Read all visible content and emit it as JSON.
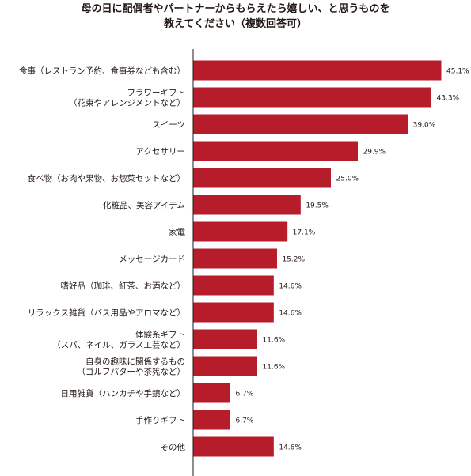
{
  "chart_data": {
    "type": "bar",
    "orientation": "horizontal",
    "title_lines": [
      "母の日に配偶者やパートナーからもらえたら嬉しい、と思うものを",
      "教えてください（複数回答可）"
    ],
    "categories": [
      [
        "食事（レストラン予約、食事券なども含む）"
      ],
      [
        "フラワーギフト",
        "（花束やアレンジメントなど）"
      ],
      [
        "スイーツ"
      ],
      [
        "アクセサリー"
      ],
      [
        "食べ物（お肉や果物、お惣菜セットなど）"
      ],
      [
        "化粧品、美容アイテム"
      ],
      [
        "家電"
      ],
      [
        "メッセージカード"
      ],
      [
        "嗜好品（珈琲、紅茶、お酒など）"
      ],
      [
        "リラックス雑貨（バス用品やアロマなど）"
      ],
      [
        "体験系ギフト",
        "（スパ、ネイル、ガラス工芸など）"
      ],
      [
        "自身の趣味に関係するもの",
        "（ゴルフパターや茶筅など）"
      ],
      [
        "日用雑貨（ハンカチや手鏡など）"
      ],
      [
        "手作りギフト"
      ],
      [
        "その他"
      ]
    ],
    "values": [
      45.1,
      43.3,
      39.0,
      29.9,
      25.0,
      19.5,
      17.1,
      15.2,
      14.6,
      14.6,
      11.6,
      11.6,
      6.7,
      6.7,
      14.6
    ],
    "value_labels": [
      "45.1%",
      "43.3%",
      "39.0%",
      "29.9%",
      "25.0%",
      "19.5%",
      "17.1%",
      "15.2%",
      "14.6%",
      "14.6%",
      "11.6%",
      "11.6%",
      "6.7%",
      "6.7%",
      "14.6%"
    ],
    "unit": "%",
    "xlim": [
      0,
      50
    ],
    "bar_color": "#b71c2b",
    "axis_color": "#231815",
    "grid": false,
    "legend": false
  }
}
